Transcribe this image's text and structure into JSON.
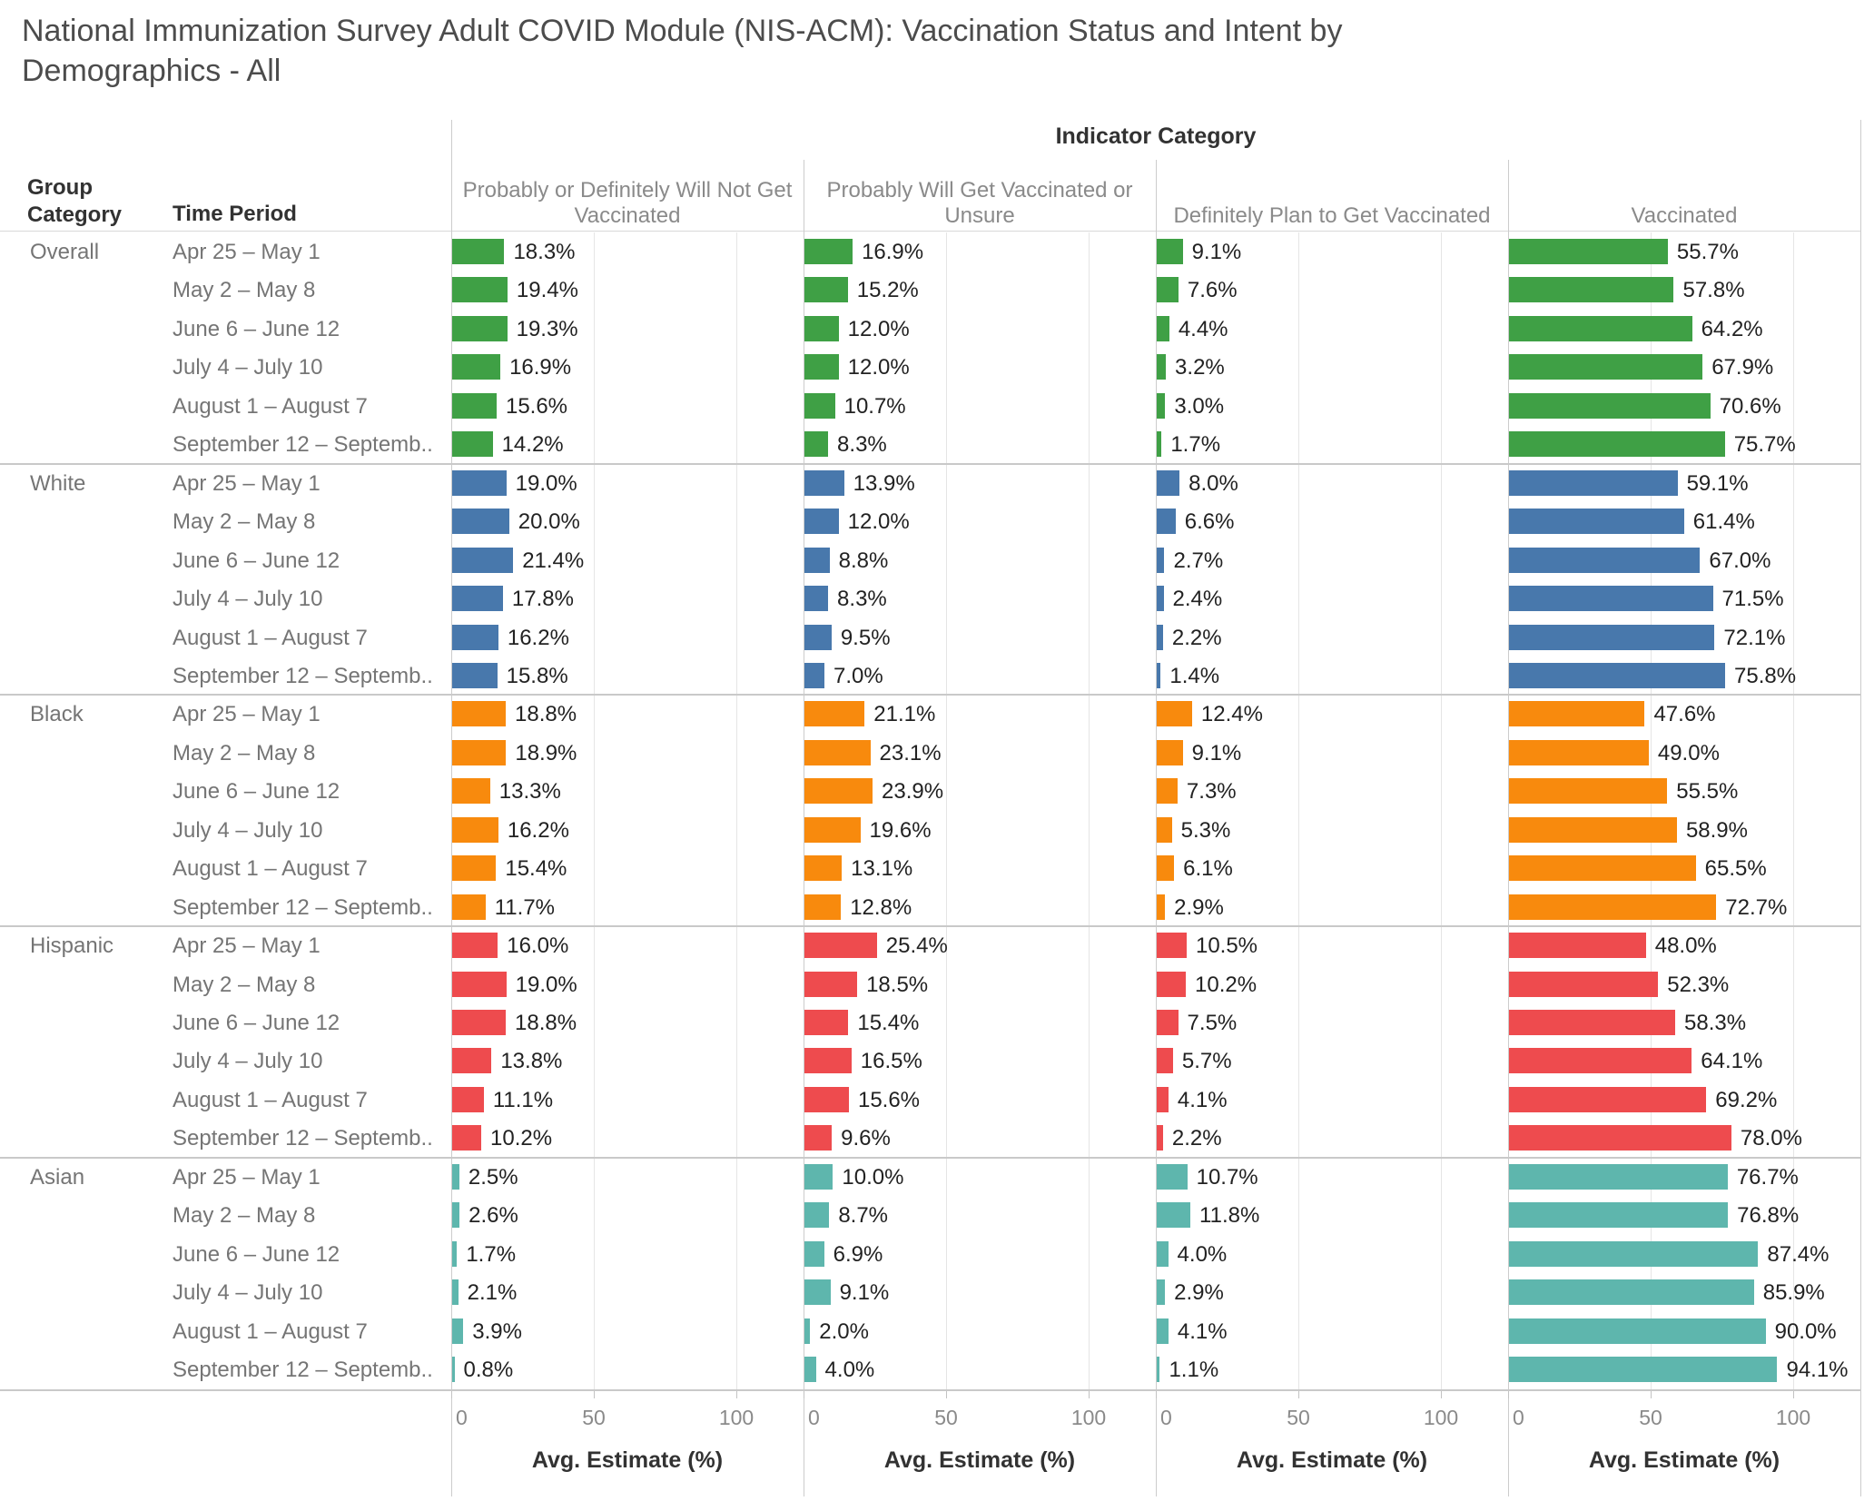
{
  "title": "National Immunization Survey Adult COVID Module (NIS-ACM): Vaccination Status and Intent by Demographics - All",
  "header": {
    "indicator_category": "Indicator Category",
    "group_category": "Group Category",
    "time_period": "Time Period"
  },
  "axis": {
    "ticks": [
      0,
      50,
      100
    ],
    "title": "Avg. Estimate (%)"
  },
  "chart_data": {
    "type": "bar",
    "orientation": "horizontal",
    "title": "National Immunization Survey Adult COVID Module (NIS-ACM): Vaccination Status and Intent by Demographics - All",
    "xlabel": "Avg. Estimate (%)",
    "value_suffix": "%",
    "xlim": [
      0,
      123.5
    ],
    "x_ticks": [
      0,
      50,
      100
    ],
    "grid": true,
    "indicator_categories": [
      "Probably or Definitely Will Not Get Vaccinated",
      "Probably Will Get Vaccinated or Unsure",
      "Definitely Plan to Get Vaccinated",
      "Vaccinated"
    ],
    "time_periods": [
      "Apr 25 – May 1",
      "May 2 – May 8",
      "June 6 – June 12",
      "July 4 – July 10",
      "August 1 –  August 7",
      "September 12  – Septemb.."
    ],
    "groups": [
      {
        "name": "Overall",
        "color": "#3FA045",
        "rows": [
          [
            18.3,
            16.9,
            9.1,
            55.7
          ],
          [
            19.4,
            15.2,
            7.6,
            57.8
          ],
          [
            19.3,
            12.0,
            4.4,
            64.2
          ],
          [
            16.9,
            12.0,
            3.2,
            67.9
          ],
          [
            15.6,
            10.7,
            3.0,
            70.6
          ],
          [
            14.2,
            8.3,
            1.7,
            75.7
          ]
        ]
      },
      {
        "name": "White",
        "color": "#4878AC",
        "rows": [
          [
            19.0,
            13.9,
            8.0,
            59.1
          ],
          [
            20.0,
            12.0,
            6.6,
            61.4
          ],
          [
            21.4,
            8.8,
            2.7,
            67.0
          ],
          [
            17.8,
            8.3,
            2.4,
            71.5
          ],
          [
            16.2,
            9.5,
            2.2,
            72.1
          ],
          [
            15.8,
            7.0,
            1.4,
            75.8
          ]
        ]
      },
      {
        "name": "Black",
        "color": "#F88A0D",
        "rows": [
          [
            18.8,
            21.1,
            12.4,
            47.6
          ],
          [
            18.9,
            23.1,
            9.1,
            49.0
          ],
          [
            13.3,
            23.9,
            7.3,
            55.5
          ],
          [
            16.2,
            19.6,
            5.3,
            58.9
          ],
          [
            15.4,
            13.1,
            6.1,
            65.5
          ],
          [
            11.7,
            12.8,
            2.9,
            72.7
          ]
        ]
      },
      {
        "name": "Hispanic",
        "color": "#EE4B4E",
        "rows": [
          [
            16.0,
            25.4,
            10.5,
            48.0
          ],
          [
            19.0,
            18.5,
            10.2,
            52.3
          ],
          [
            18.8,
            15.4,
            7.5,
            58.3
          ],
          [
            13.8,
            16.5,
            5.7,
            64.1
          ],
          [
            11.1,
            15.6,
            4.1,
            69.2
          ],
          [
            10.2,
            9.6,
            2.2,
            78.0
          ]
        ]
      },
      {
        "name": "Asian",
        "color": "#5EB6AD",
        "rows": [
          [
            2.5,
            10.0,
            10.7,
            76.7
          ],
          [
            2.6,
            8.7,
            11.8,
            76.8
          ],
          [
            1.7,
            6.9,
            4.0,
            87.4
          ],
          [
            2.1,
            9.1,
            2.9,
            85.9
          ],
          [
            3.9,
            2.0,
            4.1,
            90.0
          ],
          [
            0.8,
            4.0,
            1.1,
            94.1
          ]
        ]
      }
    ]
  }
}
